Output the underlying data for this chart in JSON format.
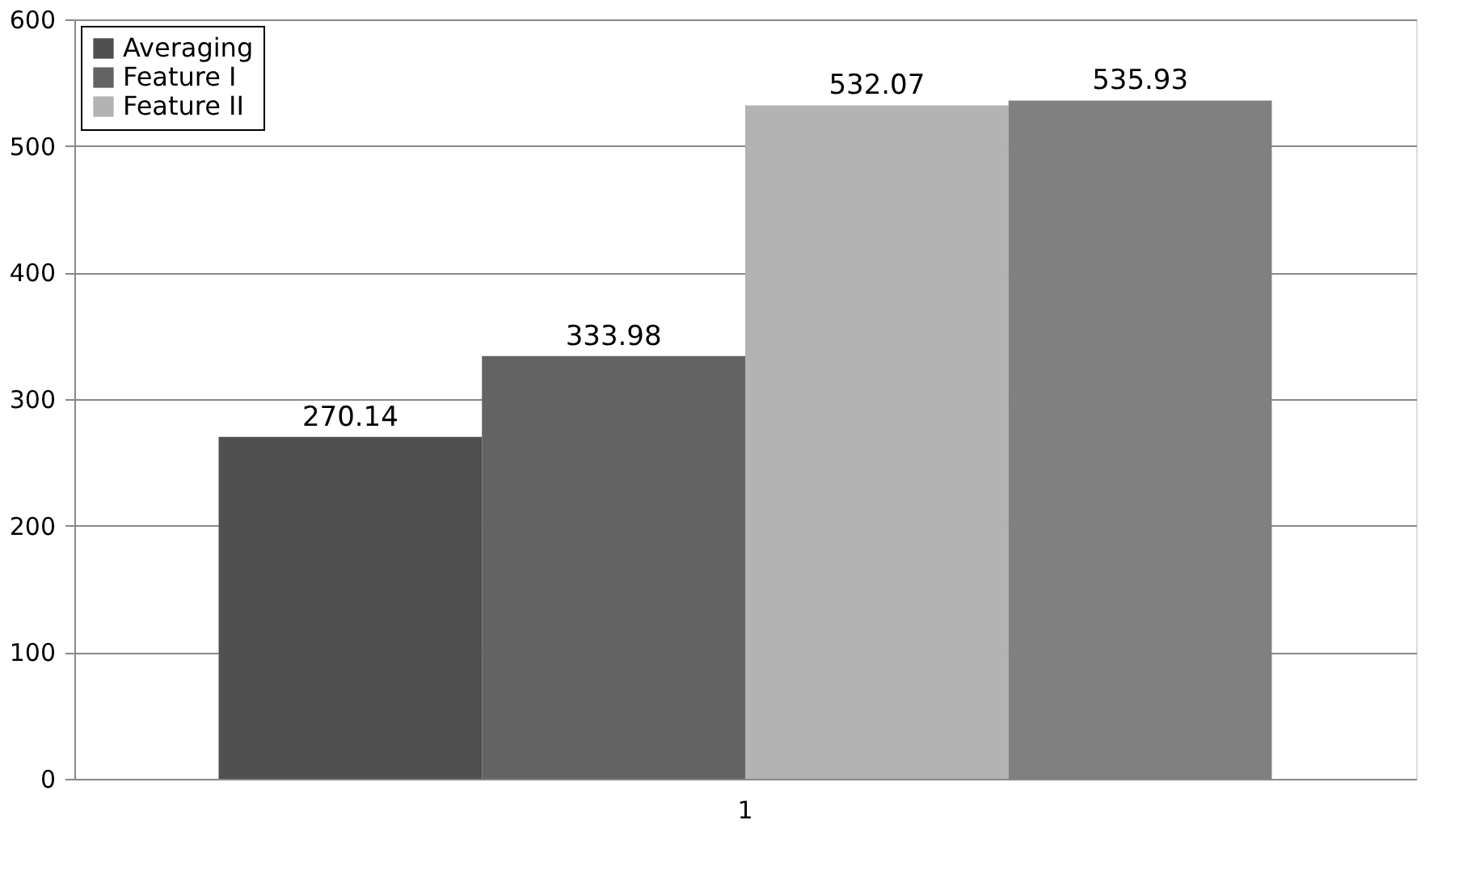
{
  "chart_data": {
    "type": "bar",
    "categories": [
      "1"
    ],
    "series": [
      {
        "name": "Averaging",
        "color": "#505050",
        "values": [
          270.14
        ]
      },
      {
        "name": "Feature I",
        "color": "#636363",
        "values": [
          333.98
        ]
      },
      {
        "name": "Feature II",
        "color": "#b3b3b3",
        "values": [
          532.07
        ]
      },
      {
        "color": "#808080",
        "values": [
          535.93
        ]
      }
    ],
    "ylim": [
      0,
      600
    ],
    "yticks": [
      0,
      100,
      200,
      300,
      400,
      500,
      600
    ],
    "grid": "y",
    "legend": "top left",
    "data_labels": true
  }
}
